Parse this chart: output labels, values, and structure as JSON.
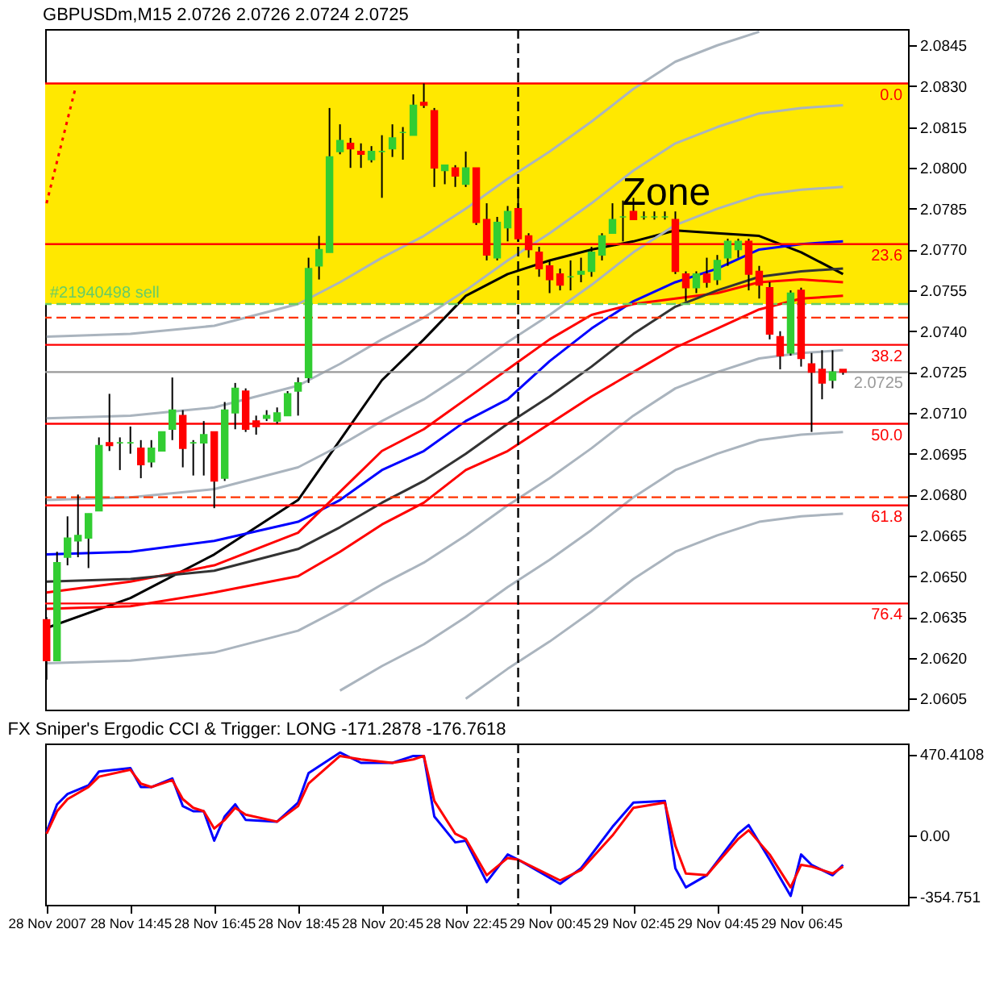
{
  "chart_data": [
    {
      "type": "candlestick",
      "title": "GBPUSDm,M15 2.0726 2.0726 2.0724 2.0725",
      "x": [
        "2007-11-28T12:45",
        "2007-11-28T13:00",
        "2007-11-28T13:15",
        "2007-11-28T13:30",
        "2007-11-28T13:45",
        "2007-11-28T14:00",
        "2007-11-28T14:15",
        "2007-11-28T14:30",
        "2007-11-28T14:45",
        "2007-11-28T15:00",
        "2007-11-28T15:15",
        "2007-11-28T15:30",
        "2007-11-28T15:45",
        "2007-11-28T16:00",
        "2007-11-28T16:15",
        "2007-11-28T16:30",
        "2007-11-28T16:45",
        "2007-11-28T17:00",
        "2007-11-28T17:15",
        "2007-11-28T17:30",
        "2007-11-28T17:45",
        "2007-11-28T18:00",
        "2007-11-28T18:15",
        "2007-11-28T18:30",
        "2007-11-28T18:45",
        "2007-11-28T19:00",
        "2007-11-28T19:15",
        "2007-11-28T19:30",
        "2007-11-28T19:45",
        "2007-11-28T20:00",
        "2007-11-28T20:15",
        "2007-11-28T20:30",
        "2007-11-28T20:45",
        "2007-11-28T21:00",
        "2007-11-28T21:15",
        "2007-11-28T21:30",
        "2007-11-28T21:45",
        "2007-11-28T22:00",
        "2007-11-28T22:15",
        "2007-11-28T22:30",
        "2007-11-28T22:45",
        "2007-11-28T23:00",
        "2007-11-28T23:15",
        "2007-11-28T23:30",
        "2007-11-28T23:45",
        "2007-11-29T00:00",
        "2007-11-29T00:15",
        "2007-11-29T00:30",
        "2007-11-29T00:45",
        "2007-11-29T01:00",
        "2007-11-29T01:15",
        "2007-11-29T01:30",
        "2007-11-29T01:45",
        "2007-11-29T02:00",
        "2007-11-29T02:15",
        "2007-11-29T02:30",
        "2007-11-29T02:45",
        "2007-11-29T03:00",
        "2007-11-29T03:15",
        "2007-11-29T03:30",
        "2007-11-29T03:45",
        "2007-11-29T04:00",
        "2007-11-29T04:15",
        "2007-11-29T04:30",
        "2007-11-29T04:45",
        "2007-11-29T05:00",
        "2007-11-29T05:15",
        "2007-11-29T05:30",
        "2007-11-29T05:45",
        "2007-11-29T06:00",
        "2007-11-29T06:15",
        "2007-11-29T06:30",
        "2007-11-29T06:45",
        "2007-11-29T07:00",
        "2007-11-29T07:15",
        "2007-11-29T07:30",
        "2007-11-29T07:45"
      ],
      "ohlc": [
        [
          2.0634,
          2.0635,
          2.0612,
          2.0619
        ],
        [
          2.0619,
          2.0659,
          2.0619,
          2.0655
        ],
        [
          2.0657,
          2.0672,
          2.0654,
          2.0664
        ],
        [
          2.0663,
          2.068,
          2.0657,
          2.0665
        ],
        [
          2.0664,
          2.0673,
          2.0653,
          2.0673
        ],
        [
          2.0674,
          2.0701,
          2.0674,
          2.0698
        ],
        [
          2.0699,
          2.0717,
          2.0696,
          2.0698
        ],
        [
          2.0699,
          2.0701,
          2.0689,
          2.0699
        ],
        [
          2.0699,
          2.0705,
          2.0695,
          2.0699
        ],
        [
          2.0697,
          2.07,
          2.0686,
          2.0691
        ],
        [
          2.0692,
          2.07,
          2.069,
          2.0697
        ],
        [
          2.0696,
          2.0703,
          2.0696,
          2.0703
        ],
        [
          2.0704,
          2.0723,
          2.07,
          2.0711
        ],
        [
          2.0709,
          2.0711,
          2.069,
          2.0697
        ],
        [
          2.0699,
          2.07,
          2.0687,
          2.0699
        ],
        [
          2.0699,
          2.0707,
          2.0687,
          2.0702
        ],
        [
          2.0703,
          2.0703,
          2.0675,
          2.0685
        ],
        [
          2.0686,
          2.0714,
          2.0685,
          2.0711
        ],
        [
          2.071,
          2.0721,
          2.0704,
          2.0719
        ],
        [
          2.0718,
          2.0719,
          2.0703,
          2.0704
        ],
        [
          2.0707,
          2.0709,
          2.0702,
          2.0705
        ],
        [
          2.0708,
          2.0711,
          2.0707,
          2.0709
        ],
        [
          2.0707,
          2.0712,
          2.0706,
          2.071
        ],
        [
          2.0709,
          2.0718,
          2.0709,
          2.0717
        ],
        [
          2.0718,
          2.0723,
          2.0709,
          2.0721
        ],
        [
          2.0723,
          2.0767,
          2.0721,
          2.0763
        ],
        [
          2.0764,
          2.0775,
          2.0759,
          2.077
        ],
        [
          2.0769,
          2.0822,
          2.0769,
          2.0804
        ],
        [
          2.0806,
          2.0816,
          2.0805,
          2.081
        ],
        [
          2.0809,
          2.0811,
          2.08,
          2.0807
        ],
        [
          2.0806,
          2.0809,
          2.08,
          2.0805
        ],
        [
          2.0803,
          2.0808,
          2.0802,
          2.0806
        ],
        [
          2.0806,
          2.0812,
          2.0789,
          2.0806
        ],
        [
          2.0807,
          2.0816,
          2.0804,
          2.0811
        ],
        [
          2.0813,
          2.0815,
          2.0803,
          2.0813
        ],
        [
          2.0812,
          2.0827,
          2.0812,
          2.0823
        ],
        [
          2.0824,
          2.0831,
          2.0822,
          2.0823
        ],
        [
          2.0821,
          2.0822,
          2.0793,
          2.08
        ],
        [
          2.0799,
          2.0801,
          2.0794,
          2.0801
        ],
        [
          2.08,
          2.0801,
          2.0793,
          2.0797
        ],
        [
          2.0794,
          2.0806,
          2.0793,
          2.08
        ],
        [
          2.08,
          2.08,
          2.0779,
          2.078
        ],
        [
          2.0781,
          2.0787,
          2.0766,
          2.0768
        ],
        [
          2.0767,
          2.0782,
          2.0766,
          2.078
        ],
        [
          2.0778,
          2.0786,
          2.0773,
          2.0784
        ],
        [
          2.0785,
          2.0793,
          2.0773,
          2.0774
        ],
        [
          2.0775,
          2.0776,
          2.0767,
          2.077
        ],
        [
          2.0769,
          2.0771,
          2.076,
          2.0763
        ],
        [
          2.0764,
          2.0766,
          2.0754,
          2.0759
        ],
        [
          2.0761,
          2.0763,
          2.0755,
          2.0757
        ],
        [
          2.076,
          2.0766,
          2.0755,
          2.076
        ],
        [
          2.0761,
          2.0767,
          2.0758,
          2.0762
        ],
        [
          2.0762,
          2.0771,
          2.076,
          2.0769
        ],
        [
          2.0768,
          2.0776,
          2.0766,
          2.0775
        ],
        [
          2.0776,
          2.0787,
          2.0776,
          2.0781
        ],
        [
          2.0782,
          2.0788,
          2.0773,
          2.0782
        ],
        [
          2.0784,
          2.0789,
          2.0781,
          2.0781
        ],
        [
          2.0782,
          2.0784,
          2.0781,
          2.0782
        ],
        [
          2.0782,
          2.0784,
          2.0781,
          2.0782
        ],
        [
          2.0782,
          2.0784,
          2.0781,
          2.0782
        ],
        [
          2.0781,
          2.0784,
          2.0761,
          2.0762
        ],
        [
          2.0761,
          2.0762,
          2.0751,
          2.0756
        ],
        [
          2.0756,
          2.0762,
          2.0754,
          2.0761
        ],
        [
          2.0761,
          2.0767,
          2.0756,
          2.0758
        ],
        [
          2.0759,
          2.0768,
          2.0757,
          2.0766
        ],
        [
          2.0767,
          2.0774,
          2.0764,
          2.0773
        ],
        [
          2.077,
          2.0774,
          2.0767,
          2.0773
        ],
        [
          2.0773,
          2.0774,
          2.0755,
          2.0761
        ],
        [
          2.0762,
          2.0764,
          2.0752,
          2.0757
        ],
        [
          2.0756,
          2.0758,
          2.0737,
          2.0739
        ],
        [
          2.0738,
          2.074,
          2.0726,
          2.0731
        ],
        [
          2.0732,
          2.0755,
          2.0731,
          2.0754
        ],
        [
          2.0755,
          2.0756,
          2.0727,
          2.073
        ],
        [
          2.0728,
          2.0732,
          2.0703,
          2.0725
        ],
        [
          2.0726,
          2.0733,
          2.0715,
          2.0721
        ],
        [
          2.0722,
          2.0733,
          2.0719,
          2.0725
        ],
        [
          2.0726,
          2.0726,
          2.0724,
          2.0725
        ]
      ],
      "colors": [
        "#ff0000",
        "#32cd32",
        "#32cd32",
        "#32cd32",
        "#32cd32",
        "#32cd32",
        "#ff0000",
        "#32cd32",
        "#32cd32",
        "#ff0000",
        "#32cd32",
        "#32cd32",
        "#32cd32",
        "#ff0000",
        "#32cd32",
        "#32cd32",
        "#ff0000",
        "#32cd32",
        "#32cd32",
        "#ff0000",
        "#ff0000",
        "#32cd32",
        "#32cd32",
        "#32cd32",
        "#32cd32",
        "#32cd32",
        "#32cd32",
        "#32cd32",
        "#32cd32",
        "#ff0000",
        "#ff0000",
        "#32cd32",
        "#32cd32",
        "#32cd32",
        "#32cd32",
        "#32cd32",
        "#ff0000",
        "#ff0000",
        "#32cd32",
        "#ff0000",
        "#32cd32",
        "#ff0000",
        "#ff0000",
        "#32cd32",
        "#32cd32",
        "#ff0000",
        "#ff0000",
        "#ff0000",
        "#ff0000",
        "#ff0000",
        "#32cd32",
        "#32cd32",
        "#32cd32",
        "#32cd32",
        "#32cd32",
        "#32cd32",
        "#ff0000",
        "#32cd32",
        "#32cd32",
        "#32cd32",
        "#ff0000",
        "#ff0000",
        "#32cd32",
        "#ff0000",
        "#32cd32",
        "#32cd32",
        "#32cd32",
        "#ff0000",
        "#ff0000",
        "#ff0000",
        "#ff0000",
        "#32cd32",
        "#ff0000",
        "#ff0000",
        "#ff0000",
        "#32cd32",
        "#ff0000"
      ],
      "series": [
        {
          "type": "line",
          "color": "#000000",
          "x": [
            "2007-11-28T12:45",
            "2007-11-28T14:45",
            "2007-11-28T16:45",
            "2007-11-28T18:45",
            "2007-11-28T19:45",
            "2007-11-28T20:45",
            "2007-11-28T21:45",
            "2007-11-28T22:45",
            "2007-11-28T23:45",
            "2007-11-29T00:45",
            "2007-11-29T01:45",
            "2007-11-29T02:45",
            "2007-11-29T03:45",
            "2007-11-29T04:45",
            "2007-11-29T05:45",
            "2007-11-29T06:45",
            "2007-11-29T07:45"
          ],
          "values": [
            2.0631,
            2.0642,
            2.0658,
            2.0678,
            2.07,
            2.0722,
            2.0737,
            2.0753,
            2.0761,
            2.0766,
            2.077,
            2.0773,
            2.0777,
            2.0776,
            2.0775,
            2.0769,
            2.0761
          ]
        },
        {
          "type": "line",
          "color": "#0000ff",
          "x": [
            "2007-11-28T12:45",
            "2007-11-28T14:45",
            "2007-11-28T16:45",
            "2007-11-28T18:45",
            "2007-11-28T19:45",
            "2007-11-28T20:45",
            "2007-11-28T21:45",
            "2007-11-28T22:45",
            "2007-11-28T23:45",
            "2007-11-29T00:45",
            "2007-11-29T01:45",
            "2007-11-29T02:45",
            "2007-11-29T03:45",
            "2007-11-29T04:45",
            "2007-11-29T05:45",
            "2007-11-29T06:45",
            "2007-11-29T07:45"
          ],
          "values": [
            2.0658,
            2.0659,
            2.0663,
            2.067,
            2.0678,
            2.0689,
            2.0696,
            2.0707,
            2.0715,
            2.0729,
            2.0741,
            2.0751,
            2.0758,
            2.0763,
            2.077,
            2.0772,
            2.0773
          ]
        },
        {
          "type": "line",
          "color": "#ff0000",
          "x": [
            "2007-11-28T12:45",
            "2007-11-28T14:45",
            "2007-11-28T16:45",
            "2007-11-28T18:45",
            "2007-11-28T19:45",
            "2007-11-28T20:45",
            "2007-11-28T21:45",
            "2007-11-28T22:45",
            "2007-11-28T23:45",
            "2007-11-29T00:45",
            "2007-11-29T01:45",
            "2007-11-29T02:45",
            "2007-11-29T03:45",
            "2007-11-29T04:45",
            "2007-11-29T05:45",
            "2007-11-29T06:45",
            "2007-11-29T07:45"
          ],
          "values": [
            2.0644,
            2.0648,
            2.0654,
            2.0666,
            2.0681,
            2.0696,
            2.0704,
            2.0715,
            2.0726,
            2.0737,
            2.0746,
            2.075,
            2.0752,
            2.0754,
            2.0758,
            2.0759,
            2.0758
          ]
        },
        {
          "type": "line",
          "color": "#ff0000",
          "x": [
            "2007-11-28T12:45",
            "2007-11-28T14:45",
            "2007-11-28T16:45",
            "2007-11-28T18:45",
            "2007-11-28T19:45",
            "2007-11-28T20:45",
            "2007-11-28T21:45",
            "2007-11-28T22:45",
            "2007-11-28T23:45",
            "2007-11-29T00:45",
            "2007-11-29T01:45",
            "2007-11-29T02:45",
            "2007-11-29T03:45",
            "2007-11-29T04:45",
            "2007-11-29T05:45",
            "2007-11-29T06:45",
            "2007-11-29T07:45"
          ],
          "values": [
            2.0638,
            2.0639,
            2.0644,
            2.065,
            2.0659,
            2.0669,
            2.0677,
            2.0689,
            2.0696,
            2.0706,
            2.0716,
            2.0725,
            2.0734,
            2.0741,
            2.0748,
            2.0752,
            2.0753
          ]
        },
        {
          "type": "line",
          "color": "#333333",
          "x": [
            "2007-11-28T12:45",
            "2007-11-28T14:45",
            "2007-11-28T16:45",
            "2007-11-28T18:45",
            "2007-11-28T19:45",
            "2007-11-28T20:45",
            "2007-11-28T21:45",
            "2007-11-28T22:45",
            "2007-11-28T23:45",
            "2007-11-29T00:45",
            "2007-11-29T01:45",
            "2007-11-29T02:45",
            "2007-11-29T03:45",
            "2007-11-29T04:45",
            "2007-11-29T05:45",
            "2007-11-29T06:45",
            "2007-11-29T07:45"
          ],
          "values": [
            2.0648,
            2.0649,
            2.0652,
            2.066,
            2.0668,
            2.0677,
            2.0685,
            2.0695,
            2.0706,
            2.0716,
            2.0727,
            2.0739,
            2.0749,
            2.0755,
            2.076,
            2.0762,
            2.0763
          ]
        },
        {
          "type": "line",
          "color": "#aab4be",
          "x": [
            "2007-11-28T12:45",
            "2007-11-28T14:45",
            "2007-11-28T16:45",
            "2007-11-28T18:45",
            "2007-11-28T19:45",
            "2007-11-28T20:45",
            "2007-11-28T21:45",
            "2007-11-28T22:45",
            "2007-11-28T23:45",
            "2007-11-29T00:45",
            "2007-11-29T01:45",
            "2007-11-29T02:45",
            "2007-11-29T03:45",
            "2007-11-29T04:45",
            "2007-11-29T05:45",
            "2007-11-29T06:45",
            "2007-11-29T07:45"
          ],
          "values": [
            2.0678,
            2.0679,
            2.0682,
            2.069,
            2.0698,
            2.0707,
            2.0715,
            2.0725,
            2.0736,
            2.0746,
            2.0757,
            2.0769,
            2.0779,
            2.0785,
            2.079,
            2.0792,
            2.0793
          ]
        },
        {
          "type": "line",
          "color": "#aab4be",
          "x": [
            "2007-11-28T12:45",
            "2007-11-28T14:45",
            "2007-11-28T16:45",
            "2007-11-28T18:45",
            "2007-11-28T19:45",
            "2007-11-28T20:45",
            "2007-11-28T21:45",
            "2007-11-28T22:45",
            "2007-11-28T23:45",
            "2007-11-29T00:45",
            "2007-11-29T01:45",
            "2007-11-29T02:45",
            "2007-11-29T03:45",
            "2007-11-29T04:45",
            "2007-11-29T05:45",
            "2007-11-29T06:45",
            "2007-11-29T07:45"
          ],
          "values": [
            2.0708,
            2.0709,
            2.0712,
            2.072,
            2.0728,
            2.0737,
            2.0745,
            2.0755,
            2.0766,
            2.0776,
            2.0787,
            2.0799,
            2.0809,
            2.0815,
            2.082,
            2.0822,
            2.0823
          ]
        },
        {
          "type": "line",
          "color": "#aab4be",
          "x": [
            "2007-11-28T12:45",
            "2007-11-28T14:45",
            "2007-11-28T16:45",
            "2007-11-28T18:45",
            "2007-11-28T19:45",
            "2007-11-28T20:45",
            "2007-11-28T21:45",
            "2007-11-28T22:45",
            "2007-11-28T23:45",
            "2007-11-29T00:45",
            "2007-11-29T01:45",
            "2007-11-29T02:45",
            "2007-11-29T03:45",
            "2007-11-29T04:45",
            "2007-11-29T05:45"
          ],
          "values": [
            2.0738,
            2.0739,
            2.0742,
            2.075,
            2.0758,
            2.0767,
            2.0775,
            2.0785,
            2.0796,
            2.0806,
            2.0817,
            2.0829,
            2.0839,
            2.0845,
            2.085
          ]
        },
        {
          "type": "line",
          "color": "#aab4be",
          "x": [
            "2007-11-28T12:45",
            "2007-11-28T14:45",
            "2007-11-28T16:45",
            "2007-11-28T18:45",
            "2007-11-28T19:45",
            "2007-11-28T20:45",
            "2007-11-28T21:45",
            "2007-11-28T22:45",
            "2007-11-28T23:45",
            "2007-11-29T00:45",
            "2007-11-29T01:45",
            "2007-11-29T02:45",
            "2007-11-29T03:45",
            "2007-11-29T04:45",
            "2007-11-29T05:45",
            "2007-11-29T06:45",
            "2007-11-29T07:45"
          ],
          "values": [
            2.0618,
            2.0619,
            2.0622,
            2.063,
            2.0638,
            2.0647,
            2.0655,
            2.0665,
            2.0676,
            2.0686,
            2.0697,
            2.0709,
            2.0719,
            2.0725,
            2.073,
            2.0732,
            2.0733
          ]
        },
        {
          "type": "line",
          "color": "#aab4be",
          "x": [
            "2007-11-28T19:45",
            "2007-11-28T20:45",
            "2007-11-28T21:45",
            "2007-11-28T22:45",
            "2007-11-28T23:45",
            "2007-11-29T00:45",
            "2007-11-29T01:45",
            "2007-11-29T02:45",
            "2007-11-29T03:45",
            "2007-11-29T04:45",
            "2007-11-29T05:45",
            "2007-11-29T06:45",
            "2007-11-29T07:45"
          ],
          "values": [
            2.0608,
            2.0617,
            2.0625,
            2.0635,
            2.0646,
            2.0656,
            2.0667,
            2.0679,
            2.0689,
            2.0695,
            2.07,
            2.0702,
            2.0703
          ]
        },
        {
          "type": "line",
          "color": "#aab4be",
          "x": [
            "2007-11-28T22:45",
            "2007-11-28T23:45",
            "2007-11-29T00:45",
            "2007-11-29T01:45",
            "2007-11-29T02:45",
            "2007-11-29T03:45",
            "2007-11-29T04:45",
            "2007-11-29T05:45",
            "2007-11-29T06:45",
            "2007-11-29T07:45"
          ],
          "values": [
            2.0605,
            2.0616,
            2.0626,
            2.0637,
            2.0649,
            2.0659,
            2.0665,
            2.067,
            2.0672,
            2.0673
          ]
        },
        {
          "type": "line",
          "color": "#ff0000",
          "line_style": "dotted",
          "x": [
            "2007-11-28T12:45",
            "2007-11-28T13:27"
          ],
          "values": [
            2.0787,
            2.083
          ]
        }
      ],
      "xlim": [
        "2007-11-28T12:43",
        "2007-11-29T09:18"
      ],
      "ylim": [
        2.0601,
        2.0851
      ],
      "yticks": [
        {
          "value": 2.0605,
          "label": "2.0605"
        },
        {
          "value": 2.062,
          "label": "2.0620"
        },
        {
          "value": 2.0635,
          "label": "2.0635"
        },
        {
          "value": 2.065,
          "label": "2.0650"
        },
        {
          "value": 2.0665,
          "label": "2.0665"
        },
        {
          "value": 2.068,
          "label": "2.0680"
        },
        {
          "value": 2.0695,
          "label": "2.0695"
        },
        {
          "value": 2.071,
          "label": "2.0710"
        },
        {
          "value": 2.0725,
          "label": "2.0725"
        },
        {
          "value": 2.074,
          "label": "2.0740"
        },
        {
          "value": 2.0755,
          "label": "2.0755"
        },
        {
          "value": 2.077,
          "label": "2.0770"
        },
        {
          "value": 2.0785,
          "label": "2.0785"
        },
        {
          "value": 2.08,
          "label": "2.0800"
        },
        {
          "value": 2.0815,
          "label": "2.0815"
        },
        {
          "value": 2.083,
          "label": "2.0830"
        },
        {
          "value": 2.0845,
          "label": "2.0845"
        }
      ],
      "tick_labels": "y",
      "annotations": [
        {
          "text": "0.0",
          "x": "2007-11-29T09:10",
          "y": 2.0831
        },
        {
          "text": "23.6",
          "x": "2007-11-29T09:10",
          "y": 2.0772
        },
        {
          "text": "38.2",
          "x": "2007-11-29T09:10",
          "y": 2.0735
        },
        {
          "text": "50.0",
          "x": "2007-11-29T09:10",
          "y": 2.0706
        },
        {
          "text": "61.8",
          "x": "2007-11-29T09:10",
          "y": 2.0676
        },
        {
          "text": "76.4",
          "x": "2007-11-29T09:10",
          "y": 2.064
        }
      ],
      "bands": [
        {
          "axis": "y",
          "from": 2.075,
          "to": 2.0831,
          "label": "Zone",
          "color": "#ffe800"
        }
      ],
      "ref_lines": [
        {
          "axis": "y",
          "value": 2.0831,
          "color": "#ff0000"
        },
        {
          "axis": "y",
          "value": 2.0772,
          "color": "#ff0000"
        },
        {
          "axis": "y",
          "value": 2.0735,
          "color": "#ff0000"
        },
        {
          "axis": "y",
          "value": 2.0706,
          "color": "#ff0000"
        },
        {
          "axis": "y",
          "value": 2.0676,
          "color": "#ff0000"
        },
        {
          "axis": "y",
          "value": 2.064,
          "color": "#ff0000"
        },
        {
          "axis": "y",
          "value": 2.075,
          "label": "#21940498 sell",
          "color": "#66cc66",
          "line_style": "dashed"
        },
        {
          "axis": "y",
          "value": 2.0745,
          "color": "#ff3300",
          "line_style": "dashed"
        },
        {
          "axis": "y",
          "value": 2.0679,
          "color": "#ff3300",
          "line_style": "dashed"
        },
        {
          "axis": "y",
          "value": 2.0725,
          "label": "2.0725",
          "color": "#999999"
        },
        {
          "axis": "x",
          "value": "2007-11-29T00:00",
          "color": "#000000",
          "line_style": "dashed"
        }
      ]
    },
    {
      "type": "line",
      "title": "FX Sniper's Ergodic CCI & Trigger: LONG -171.2878 -176.7618",
      "series": [
        {
          "color": "#0000ff",
          "x": [
            "2007-11-28T12:45",
            "2007-11-28T13:00",
            "2007-11-28T13:15",
            "2007-11-28T13:45",
            "2007-11-28T14:00",
            "2007-11-28T14:45",
            "2007-11-28T15:00",
            "2007-11-28T15:15",
            "2007-11-28T15:45",
            "2007-11-28T16:00",
            "2007-11-28T16:15",
            "2007-11-28T16:30",
            "2007-11-28T16:45",
            "2007-11-28T17:00",
            "2007-11-28T17:15",
            "2007-11-28T17:30",
            "2007-11-28T18:15",
            "2007-11-28T18:45",
            "2007-11-28T19:00",
            "2007-11-28T19:45",
            "2007-11-28T20:15",
            "2007-11-28T21:00",
            "2007-11-28T21:30",
            "2007-11-28T21:45",
            "2007-11-28T22:00",
            "2007-11-28T22:30",
            "2007-11-28T22:45",
            "2007-11-28T23:15",
            "2007-11-28T23:45",
            "2007-11-29T00:00",
            "2007-11-29T01:00",
            "2007-11-29T01:30",
            "2007-11-29T02:15",
            "2007-11-29T02:45",
            "2007-11-29T03:30",
            "2007-11-29T03:45",
            "2007-11-29T04:00",
            "2007-11-29T04:30",
            "2007-11-29T05:15",
            "2007-11-29T05:30",
            "2007-11-29T06:00",
            "2007-11-29T06:30",
            "2007-11-29T06:45",
            "2007-11-29T07:00",
            "2007-11-29T07:30",
            "2007-11-29T07:45"
          ],
          "values": [
            20,
            180,
            240,
            290,
            370,
            390,
            280,
            280,
            330,
            170,
            140,
            140,
            -30,
            110,
            180,
            90,
            80,
            190,
            360,
            480,
            420,
            420,
            460,
            460,
            110,
            -40,
            -30,
            -270,
            -110,
            -140,
            -280,
            -190,
            50,
            190,
            200,
            -190,
            -300,
            -230,
            10,
            60,
            -140,
            -350,
            -110,
            -170,
            -230,
            -170
          ]
        },
        {
          "color": "#ff0000",
          "x": [
            "2007-11-28T12:45",
            "2007-11-28T13:00",
            "2007-11-28T13:15",
            "2007-11-28T13:45",
            "2007-11-28T14:00",
            "2007-11-28T14:45",
            "2007-11-28T15:00",
            "2007-11-28T15:15",
            "2007-11-28T15:45",
            "2007-11-28T16:00",
            "2007-11-28T16:15",
            "2007-11-28T16:30",
            "2007-11-28T16:45",
            "2007-11-28T17:00",
            "2007-11-28T17:15",
            "2007-11-28T17:30",
            "2007-11-28T18:15",
            "2007-11-28T18:45",
            "2007-11-28T19:00",
            "2007-11-28T19:45",
            "2007-11-28T20:15",
            "2007-11-28T21:00",
            "2007-11-28T21:30",
            "2007-11-28T21:45",
            "2007-11-28T22:00",
            "2007-11-28T22:30",
            "2007-11-28T22:45",
            "2007-11-28T23:15",
            "2007-11-28T23:45",
            "2007-11-29T00:00",
            "2007-11-29T01:00",
            "2007-11-29T01:30",
            "2007-11-29T02:15",
            "2007-11-29T02:45",
            "2007-11-29T03:30",
            "2007-11-29T03:45",
            "2007-11-29T04:00",
            "2007-11-29T04:30",
            "2007-11-29T05:15",
            "2007-11-29T05:30",
            "2007-11-29T06:00",
            "2007-11-29T06:30",
            "2007-11-29T06:45",
            "2007-11-29T07:00",
            "2007-11-29T07:30",
            "2007-11-29T07:45"
          ],
          "values": [
            10,
            140,
            210,
            280,
            340,
            380,
            300,
            280,
            320,
            210,
            160,
            140,
            40,
            90,
            160,
            120,
            80,
            170,
            300,
            460,
            440,
            420,
            440,
            460,
            200,
            10,
            -20,
            -230,
            -130,
            -140,
            -260,
            -200,
            0,
            160,
            190,
            -60,
            -220,
            -230,
            -20,
            30,
            -110,
            -300,
            -170,
            -180,
            -220,
            -180
          ]
        }
      ],
      "xlim": [
        "2007-11-28T12:43",
        "2007-11-29T09:18"
      ],
      "xticks": [
        {
          "value": "2007-11-28T12:45",
          "label": "28 Nov 2007"
        },
        {
          "value": "2007-11-28T14:45",
          "label": "28 Nov 14:45"
        },
        {
          "value": "2007-11-28T16:45",
          "label": "28 Nov 16:45"
        },
        {
          "value": "2007-11-28T18:45",
          "label": "28 Nov 18:45"
        },
        {
          "value": "2007-11-28T20:45",
          "label": "28 Nov 20:45"
        },
        {
          "value": "2007-11-28T22:45",
          "label": "28 Nov 22:45"
        },
        {
          "value": "2007-11-29T00:45",
          "label": "29 Nov 00:45"
        },
        {
          "value": "2007-11-29T02:45",
          "label": "29 Nov 02:45"
        },
        {
          "value": "2007-11-29T04:45",
          "label": "29 Nov 04:45"
        },
        {
          "value": "2007-11-29T06:45",
          "label": "29 Nov 06:45"
        }
      ],
      "ylim": [
        -401,
        532
      ],
      "yticks": [
        {
          "value": 470.4108,
          "label": "470.4108"
        },
        {
          "value": 0,
          "label": "0.00"
        },
        {
          "value": -354.751,
          "label": "-354.751"
        }
      ],
      "ref_lines": [
        {
          "axis": "x",
          "value": "2007-11-29T00:00",
          "color": "#000000",
          "line_style": "dashed"
        }
      ]
    }
  ]
}
